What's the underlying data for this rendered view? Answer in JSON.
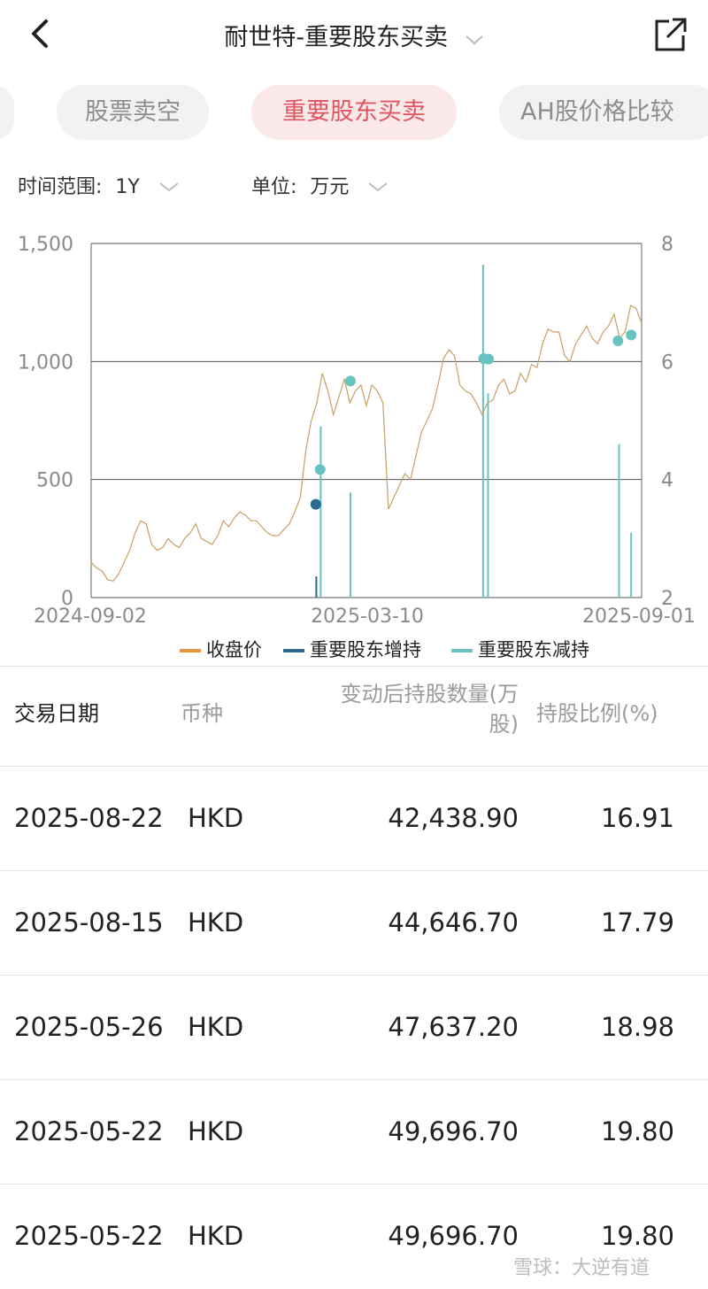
{
  "header": {
    "title": "耐世特-重要股东买卖"
  },
  "tabs": [
    {
      "label": "股票卖空",
      "active": false
    },
    {
      "label": "重要股东买卖",
      "active": true
    },
    {
      "label": "AH股价格比较",
      "active": false
    }
  ],
  "filters": {
    "time_label": "时间范围:",
    "time_value": "1Y",
    "unit_label": "单位:",
    "unit_value": "万元"
  },
  "legend": [
    {
      "label": "收盘价",
      "color": "#e8963c"
    },
    {
      "label": "重要股东增持",
      "color": "#2d6a8e"
    },
    {
      "label": "重要股东减持",
      "color": "#68c2c0"
    }
  ],
  "chart_data": {
    "type": "line",
    "x_tick_labels": [
      "2024-09-02",
      "2025-03-10",
      "2025-09-01"
    ],
    "left_axis": {
      "ticks": [
        "0",
        "500",
        "1,000",
        "1,500"
      ],
      "ylim": [
        0,
        1500
      ]
    },
    "right_axis": {
      "ticks": [
        "2",
        "4",
        "6",
        "8"
      ],
      "ylim": [
        2,
        8
      ]
    },
    "price_series": {
      "name": "收盘价",
      "axis": "right",
      "x_frac": [
        0.0,
        0.01,
        0.02,
        0.03,
        0.04,
        0.05,
        0.06,
        0.07,
        0.08,
        0.09,
        0.1,
        0.11,
        0.12,
        0.13,
        0.14,
        0.15,
        0.16,
        0.17,
        0.18,
        0.19,
        0.2,
        0.21,
        0.22,
        0.23,
        0.24,
        0.25,
        0.26,
        0.27,
        0.28,
        0.29,
        0.3,
        0.31,
        0.32,
        0.33,
        0.34,
        0.35,
        0.36,
        0.37,
        0.38,
        0.39,
        0.4,
        0.41,
        0.42,
        0.43,
        0.44,
        0.45,
        0.46,
        0.47,
        0.48,
        0.49,
        0.5,
        0.51,
        0.52,
        0.53,
        0.54,
        0.55,
        0.56,
        0.57,
        0.58,
        0.59,
        0.6,
        0.61,
        0.62,
        0.63,
        0.64,
        0.65,
        0.66,
        0.67,
        0.68,
        0.69,
        0.7,
        0.71,
        0.72,
        0.73,
        0.74,
        0.75,
        0.76,
        0.77,
        0.78,
        0.79,
        0.8,
        0.81,
        0.82,
        0.83,
        0.84,
        0.85,
        0.86,
        0.87,
        0.88,
        0.89,
        0.9,
        0.91,
        0.92,
        0.93,
        0.94,
        0.95,
        0.96,
        0.97,
        0.98,
        0.99,
        1.0
      ],
      "values": [
        2.6,
        2.5,
        2.45,
        2.3,
        2.28,
        2.4,
        2.6,
        2.8,
        3.1,
        3.3,
        3.25,
        2.9,
        2.8,
        2.85,
        3.0,
        2.9,
        2.85,
        3.0,
        3.1,
        3.25,
        3.0,
        2.95,
        2.9,
        3.05,
        3.3,
        3.2,
        3.35,
        3.45,
        3.4,
        3.3,
        3.3,
        3.2,
        3.1,
        3.05,
        3.05,
        3.15,
        3.25,
        3.45,
        3.7,
        4.5,
        5.0,
        5.3,
        5.8,
        5.5,
        5.1,
        5.4,
        5.7,
        5.3,
        5.5,
        5.6,
        5.25,
        5.6,
        5.5,
        5.3,
        3.5,
        3.7,
        3.9,
        4.1,
        4.0,
        4.4,
        4.8,
        5.0,
        5.2,
        5.6,
        6.05,
        6.2,
        6.1,
        5.6,
        5.5,
        5.45,
        5.3,
        5.1,
        5.3,
        5.35,
        5.6,
        5.7,
        5.45,
        5.5,
        5.8,
        5.65,
        5.95,
        5.9,
        6.3,
        6.55,
        6.5,
        6.5,
        6.1,
        6.0,
        6.3,
        6.45,
        6.6,
        6.4,
        6.3,
        6.5,
        6.6,
        6.8,
        6.4,
        6.5,
        6.95,
        6.9,
        6.65
      ]
    },
    "increase_bars": {
      "name": "重要股东增持",
      "axis": "left",
      "points": [
        {
          "x_frac": 0.409,
          "value": 90
        }
      ]
    },
    "decrease_bars": {
      "name": "重要股东减持",
      "axis": "left",
      "points": [
        {
          "x_frac": 0.417,
          "value": 725
        },
        {
          "x_frac": 0.471,
          "value": 445
        },
        {
          "x_frac": 0.712,
          "value": 1410
        },
        {
          "x_frac": 0.721,
          "value": 865
        },
        {
          "x_frac": 0.959,
          "value": 650
        },
        {
          "x_frac": 0.981,
          "value": 275
        }
      ]
    },
    "increase_markers": [
      {
        "x_frac": 0.408,
        "price": 3.58
      }
    ],
    "decrease_markers": [
      {
        "x_frac": 0.416,
        "price": 4.17
      },
      {
        "x_frac": 0.471,
        "price": 5.67
      },
      {
        "x_frac": 0.713,
        "price": 6.05
      },
      {
        "x_frac": 0.722,
        "price": 6.04
      },
      {
        "x_frac": 0.957,
        "price": 6.35
      },
      {
        "x_frac": 0.981,
        "price": 6.45
      }
    ]
  },
  "table": {
    "headers": {
      "date": "交易日期",
      "currency": "币种",
      "holdings_line1": "变动后持股数量(万",
      "holdings_line2": "股)",
      "ratio": "持股比例(%)"
    },
    "rows": [
      {
        "date": "2025-08-22",
        "currency": "HKD",
        "holdings": "42,438.90",
        "ratio": "16.91"
      },
      {
        "date": "2025-08-15",
        "currency": "HKD",
        "holdings": "44,646.70",
        "ratio": "17.79"
      },
      {
        "date": "2025-05-26",
        "currency": "HKD",
        "holdings": "47,637.20",
        "ratio": "18.98"
      },
      {
        "date": "2025-05-22",
        "currency": "HKD",
        "holdings": "49,696.70",
        "ratio": "19.80"
      },
      {
        "date": "2025-05-22",
        "currency": "HKD",
        "holdings": "49,696.70",
        "ratio": "19.80"
      }
    ]
  },
  "watermark": "雪球：大逆有道"
}
